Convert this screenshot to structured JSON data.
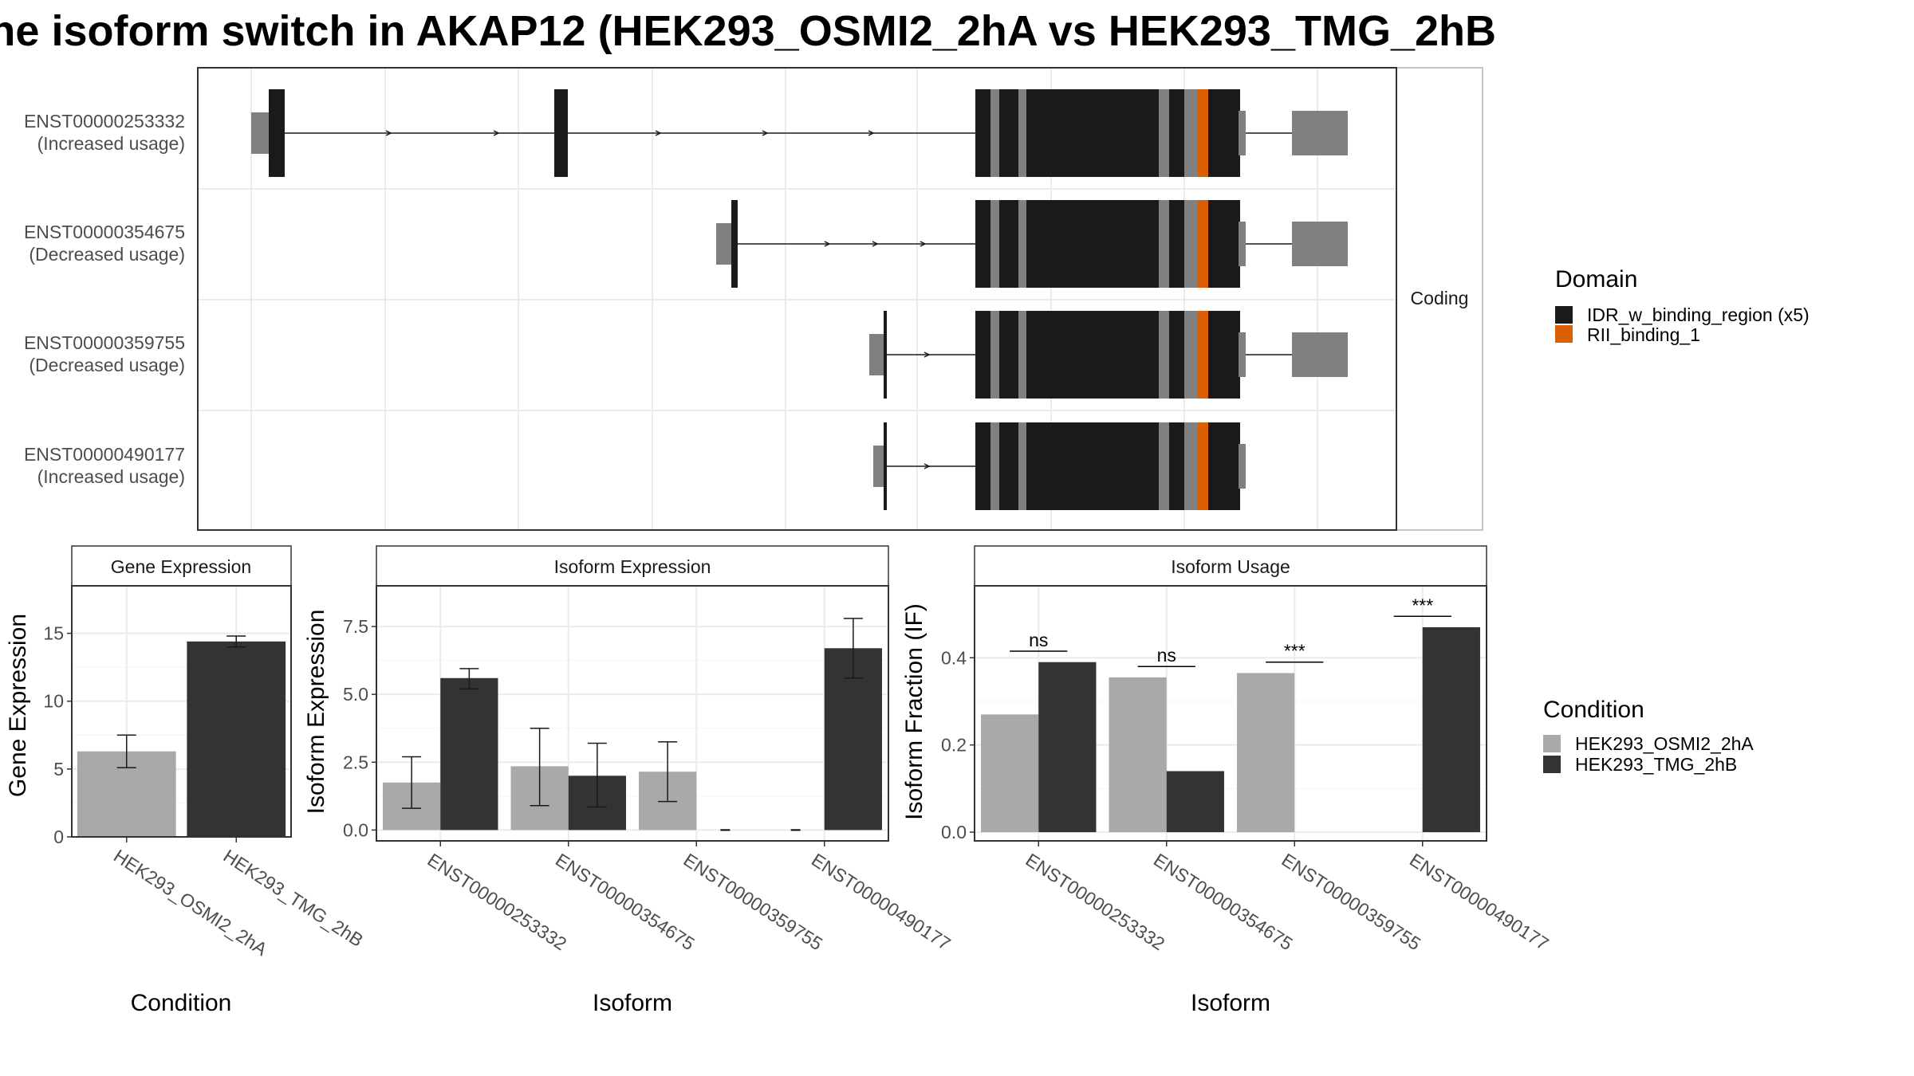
{
  "title": "ne isoform switch in AKAP12 (HEK293_OSMI2_2hA vs HEK293_TMG_2hB",
  "colors": {
    "idr": "#1a1a1a",
    "rii": "#d95f02",
    "utr": "#808080",
    "cond_a": "#a9a9a9",
    "cond_b": "#333333"
  },
  "chart_data": [
    {
      "type": "gene-structure",
      "facet_label": "Coding",
      "transcripts": [
        {
          "id": "ENST00000253332",
          "usage": "(Increased usage)"
        },
        {
          "id": "ENST00000354675",
          "usage": "(Decreased usage)"
        },
        {
          "id": "ENST00000359755",
          "usage": "(Decreased usage)"
        },
        {
          "id": "ENST00000490177",
          "usage": "(Increased usage)"
        }
      ],
      "legend": {
        "title": "Domain",
        "entries": [
          {
            "label": "IDR_w_binding_region (x5)",
            "color": "#1a1a1a"
          },
          {
            "label": "RII_binding_1",
            "color": "#d95f02"
          }
        ]
      }
    },
    {
      "type": "bar",
      "panel_title": "Gene Expression",
      "xlabel": "Condition",
      "ylabel": "Gene Expression",
      "ylim": [
        0,
        18.5
      ],
      "yticks": [
        "0",
        "5",
        "10",
        "15"
      ],
      "categories": [
        "HEK293_OSMI2_2hA",
        "HEK293_TMG_2hB"
      ],
      "values": [
        6.3,
        14.4
      ],
      "error_low": [
        5.1,
        14.0
      ],
      "error_high": [
        7.5,
        14.8
      ]
    },
    {
      "type": "bar",
      "panel_title": "Isoform Expression",
      "xlabel": "Isoform",
      "ylabel": "Isoform Expression",
      "ylim": [
        -0.4,
        9.0
      ],
      "yticks": [
        "0.0",
        "2.5",
        "5.0",
        "7.5"
      ],
      "categories": [
        "ENST00000253332",
        "ENST00000354675",
        "ENST00000359755",
        "ENST00000490177"
      ],
      "series": [
        {
          "values": [
            1.75,
            2.35,
            2.15,
            0.0
          ],
          "error_low": [
            0.8,
            0.9,
            1.05,
            0.0
          ],
          "error_high": [
            2.7,
            3.75,
            3.25,
            0.0
          ]
        },
        {
          "values": [
            5.6,
            2.0,
            0.0,
            6.7
          ],
          "error_low": [
            5.2,
            0.85,
            0.0,
            5.6
          ],
          "error_high": [
            5.95,
            3.2,
            0.0,
            7.8
          ]
        }
      ]
    },
    {
      "type": "bar",
      "panel_title": "Isoform Usage",
      "xlabel": "Isoform",
      "ylabel": "Isoform Fraction (IF)",
      "ylim": [
        -0.02,
        0.565
      ],
      "yticks": [
        "0.0",
        "0.2",
        "0.4"
      ],
      "categories": [
        "ENST00000253332",
        "ENST00000354675",
        "ENST00000359755",
        "ENST00000490177"
      ],
      "series": [
        {
          "values": [
            0.27,
            0.355,
            0.365,
            0.0
          ]
        },
        {
          "values": [
            0.39,
            0.14,
            0.0,
            0.47
          ]
        }
      ],
      "significance": [
        "ns",
        "ns",
        "***",
        "***"
      ],
      "legend": {
        "title": "Condition",
        "entries": [
          "HEK293_OSMI2_2hA",
          "HEK293_TMG_2hB"
        ]
      }
    }
  ]
}
